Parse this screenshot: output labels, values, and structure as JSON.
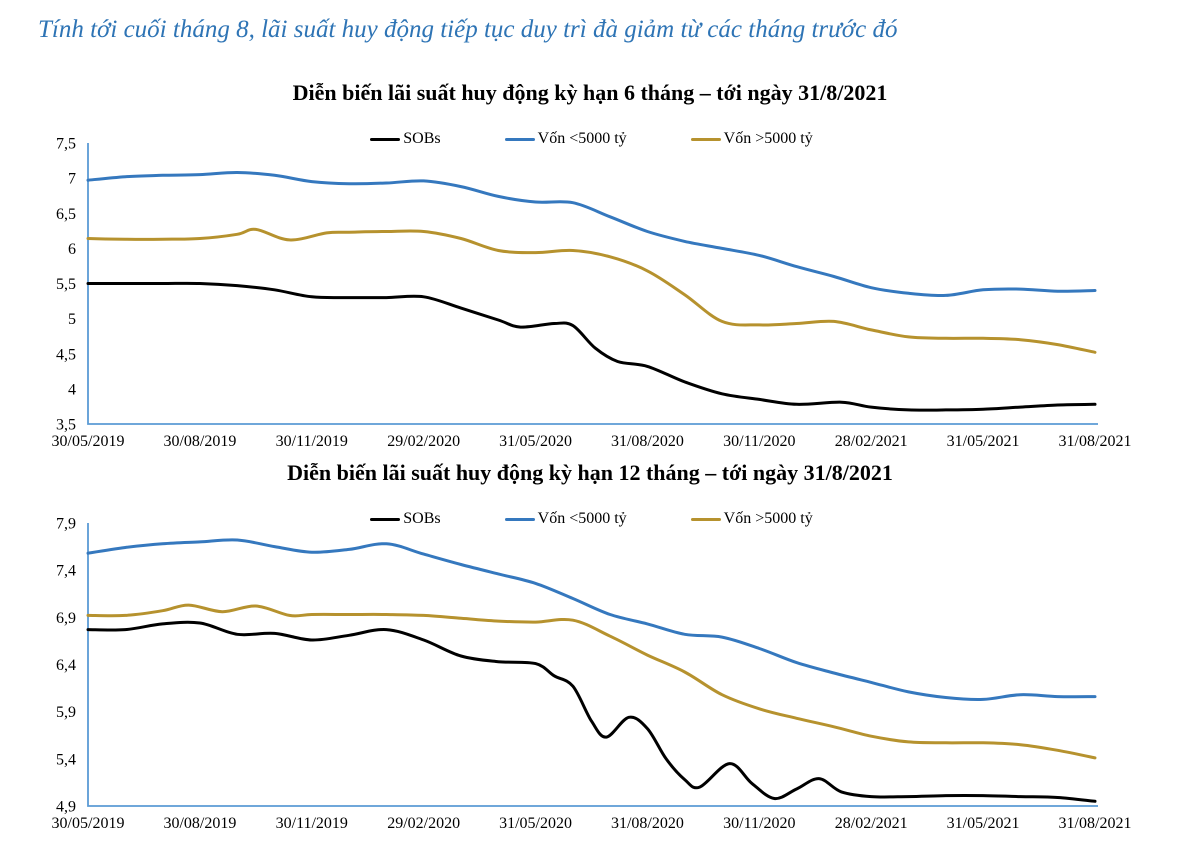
{
  "page": {
    "headline": "Tính tới cuối tháng 8, lãi suất huy động tiếp tục duy trì đà giảm từ các tháng trước đó"
  },
  "colors": {
    "headline": "#2E74B5",
    "axis": "#5B9BD5",
    "sobs": "#000000",
    "von_lt_5000": "#3578BE",
    "von_gt_5000": "#B6922E"
  },
  "chart_data": [
    {
      "type": "line",
      "title": "Diễn biến lãi suất huy động kỳ hạn 6 tháng – tới ngày 31/8/2021",
      "ylabel": "",
      "xlabel": "",
      "grid": false,
      "legend_position": "top-center-inside",
      "ylim": [
        3.5,
        7.5
      ],
      "x_range": [
        0,
        27
      ],
      "x_unit": "months since 30/05/2019",
      "y_ticks": [
        {
          "value": 3.5,
          "label": "3,5"
        },
        {
          "value": 4.0,
          "label": "4"
        },
        {
          "value": 4.5,
          "label": "4,5"
        },
        {
          "value": 5.0,
          "label": "5"
        },
        {
          "value": 5.5,
          "label": "5,5"
        },
        {
          "value": 6.0,
          "label": "6"
        },
        {
          "value": 6.5,
          "label": "6,5"
        },
        {
          "value": 7.0,
          "label": "7"
        },
        {
          "value": 7.5,
          "label": "7,5"
        }
      ],
      "x_ticks": [
        {
          "pos": 0,
          "label": "30/05/2019"
        },
        {
          "pos": 3,
          "label": "30/08/2019"
        },
        {
          "pos": 6,
          "label": "30/11/2019"
        },
        {
          "pos": 9,
          "label": "29/02/2020"
        },
        {
          "pos": 12,
          "label": "31/05/2020"
        },
        {
          "pos": 15,
          "label": "31/08/2020"
        },
        {
          "pos": 18,
          "label": "30/11/2020"
        },
        {
          "pos": 21,
          "label": "28/02/2021"
        },
        {
          "pos": 24,
          "label": "31/05/2021"
        },
        {
          "pos": 27,
          "label": "31/08/2021"
        }
      ],
      "series": [
        {
          "name": "SOBs",
          "color_key": "sobs",
          "x": [
            0,
            1,
            2,
            3,
            4,
            5,
            6,
            7,
            8,
            9,
            10,
            11,
            11.6,
            12.5,
            13,
            13.6,
            14.2,
            15,
            16,
            17,
            18,
            19,
            20.2,
            21,
            22,
            23,
            24,
            25,
            26,
            27
          ],
          "y": [
            5.5,
            5.5,
            5.5,
            5.5,
            5.47,
            5.41,
            5.31,
            5.3,
            5.3,
            5.31,
            5.15,
            4.98,
            4.88,
            4.93,
            4.9,
            4.58,
            4.39,
            4.32,
            4.1,
            3.93,
            3.85,
            3.78,
            3.81,
            3.74,
            3.7,
            3.7,
            3.71,
            3.74,
            3.77,
            3.78
          ]
        },
        {
          "name": "Vốn <5000 tỷ",
          "color_key": "von_lt_5000",
          "x": [
            0,
            1,
            2,
            3,
            4,
            5,
            6,
            7,
            8,
            9,
            10,
            11,
            12,
            13,
            14,
            15,
            16,
            17,
            18,
            19,
            20,
            21,
            22,
            23,
            24,
            25,
            26,
            27
          ],
          "y": [
            6.97,
            7.02,
            7.04,
            7.05,
            7.08,
            7.04,
            6.95,
            6.92,
            6.93,
            6.96,
            6.88,
            6.74,
            6.66,
            6.65,
            6.45,
            6.24,
            6.1,
            6.0,
            5.9,
            5.74,
            5.6,
            5.44,
            5.36,
            5.33,
            5.41,
            5.42,
            5.39,
            5.4
          ]
        },
        {
          "name": "Vốn >5000 tỷ",
          "color_key": "von_gt_5000",
          "x": [
            0,
            1,
            2,
            3,
            4,
            4.5,
            5.4,
            6.4,
            7,
            8,
            9,
            10,
            11,
            12,
            13,
            14,
            15,
            16,
            17,
            18,
            19,
            20,
            21,
            22,
            23,
            24,
            25,
            26,
            27
          ],
          "y": [
            6.14,
            6.13,
            6.13,
            6.14,
            6.2,
            6.27,
            6.12,
            6.22,
            6.23,
            6.24,
            6.24,
            6.14,
            5.97,
            5.94,
            5.97,
            5.88,
            5.68,
            5.34,
            4.96,
            4.91,
            4.93,
            4.96,
            4.84,
            4.74,
            4.72,
            4.72,
            4.7,
            4.63,
            4.52
          ]
        }
      ]
    },
    {
      "type": "line",
      "title": "Diễn biến lãi suất huy động kỳ hạn 12 tháng – tới ngày 31/8/2021",
      "ylabel": "",
      "xlabel": "",
      "grid": false,
      "legend_position": "top-center-inside",
      "ylim": [
        4.9,
        7.9
      ],
      "x_range": [
        0,
        27
      ],
      "x_unit": "months since 30/05/2019",
      "y_ticks": [
        {
          "value": 4.9,
          "label": "4,9"
        },
        {
          "value": 5.4,
          "label": "5,4"
        },
        {
          "value": 5.9,
          "label": "5,9"
        },
        {
          "value": 6.4,
          "label": "6,4"
        },
        {
          "value": 6.9,
          "label": "6,9"
        },
        {
          "value": 7.4,
          "label": "7,4"
        },
        {
          "value": 7.9,
          "label": "7,9"
        }
      ],
      "x_ticks": [
        {
          "pos": 0,
          "label": "30/05/2019"
        },
        {
          "pos": 3,
          "label": "30/08/2019"
        },
        {
          "pos": 6,
          "label": "30/11/2019"
        },
        {
          "pos": 9,
          "label": "29/02/2020"
        },
        {
          "pos": 12,
          "label": "31/05/2020"
        },
        {
          "pos": 15,
          "label": "31/08/2020"
        },
        {
          "pos": 18,
          "label": "30/11/2020"
        },
        {
          "pos": 21,
          "label": "28/02/2021"
        },
        {
          "pos": 24,
          "label": "31/05/2021"
        },
        {
          "pos": 27,
          "label": "31/08/2021"
        }
      ],
      "series": [
        {
          "name": "SOBs",
          "color_key": "sobs",
          "x": [
            0,
            1,
            2,
            3,
            4,
            5,
            6,
            7,
            8,
            9,
            10,
            11,
            12,
            12.5,
            13,
            13.5,
            13.9,
            14.5,
            15,
            15.5,
            16,
            16.4,
            17.2,
            17.8,
            18.4,
            19,
            19.6,
            20.2,
            21,
            22,
            23,
            24,
            25,
            26,
            27
          ],
          "y": [
            6.77,
            6.77,
            6.83,
            6.84,
            6.72,
            6.73,
            6.66,
            6.71,
            6.77,
            6.66,
            6.49,
            6.43,
            6.41,
            6.28,
            6.17,
            5.8,
            5.63,
            5.84,
            5.72,
            5.4,
            5.18,
            5.1,
            5.35,
            5.14,
            4.98,
            5.08,
            5.19,
            5.05,
            5.0,
            5.0,
            5.01,
            5.01,
            5.0,
            4.99,
            4.95
          ]
        },
        {
          "name": "Vốn <5000 tỷ",
          "color_key": "von_lt_5000",
          "x": [
            0,
            1,
            2,
            3,
            4,
            5,
            6,
            7,
            8,
            9,
            10,
            11,
            12,
            13,
            14,
            15,
            16,
            17,
            18,
            19,
            20,
            21,
            22,
            23,
            24,
            25,
            26,
            27
          ],
          "y": [
            7.58,
            7.64,
            7.68,
            7.7,
            7.72,
            7.65,
            7.59,
            7.62,
            7.68,
            7.57,
            7.46,
            7.36,
            7.26,
            7.1,
            6.93,
            6.83,
            6.72,
            6.69,
            6.57,
            6.42,
            6.31,
            6.21,
            6.11,
            6.05,
            6.03,
            6.08,
            6.06,
            6.06
          ]
        },
        {
          "name": "Vốn >5000 tỷ",
          "color_key": "von_gt_5000",
          "x": [
            0,
            1,
            2,
            2.7,
            3.6,
            4.5,
            5.4,
            6,
            7,
            8,
            9,
            10,
            11,
            12,
            13,
            14,
            15,
            16,
            17,
            18,
            19,
            20,
            21,
            22,
            23,
            24,
            25,
            26,
            27
          ],
          "y": [
            6.92,
            6.92,
            6.97,
            7.03,
            6.96,
            7.02,
            6.92,
            6.93,
            6.93,
            6.93,
            6.92,
            6.89,
            6.86,
            6.85,
            6.87,
            6.7,
            6.5,
            6.32,
            6.08,
            5.93,
            5.83,
            5.74,
            5.64,
            5.58,
            5.57,
            5.57,
            5.55,
            5.49,
            5.41
          ]
        }
      ]
    }
  ]
}
